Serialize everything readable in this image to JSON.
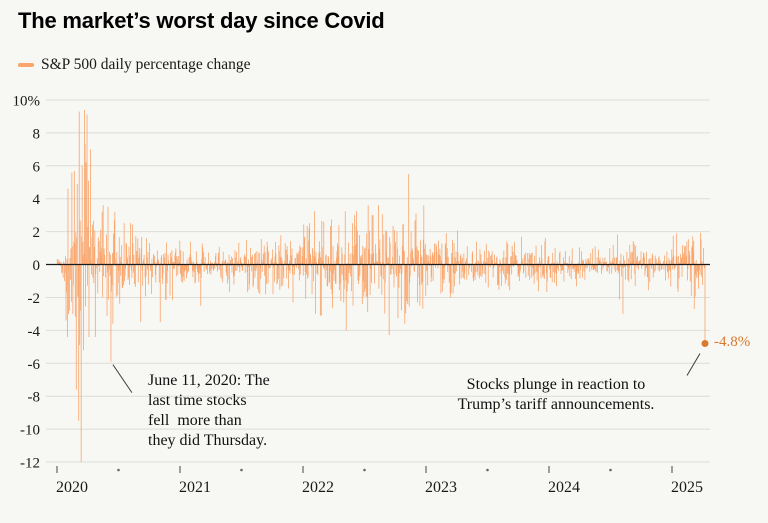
{
  "header": {
    "title": "The market’s worst day since Covid"
  },
  "legend": {
    "label": "S&P 500 daily percentage change"
  },
  "annotations": {
    "june2020": {
      "lines": [
        "June 11, 2020: The",
        "last time stocks",
        "fell  more than",
        "they did Thursday."
      ]
    },
    "tariff": {
      "lines": [
        "Stocks plunge in reaction to",
        "Trump’s tariff announcements."
      ]
    },
    "last_value_label": "-4.8%"
  },
  "chart_data": {
    "type": "bar",
    "title": "The market’s worst day since Covid",
    "series_name": "S&P 500 daily percentage change",
    "x_range": [
      2020.0,
      2025.27
    ],
    "ylim": [
      -12,
      10
    ],
    "y_ticks": [
      10,
      8,
      6,
      4,
      2,
      0,
      -2,
      -4,
      -6,
      -8,
      -10,
      -12
    ],
    "y_tick_labels": [
      "10%",
      "8",
      "6",
      "4",
      "2",
      "0",
      "-2",
      "-4",
      "-6",
      "-8",
      "-10",
      "-12"
    ],
    "x_ticks": [
      2020,
      2021,
      2022,
      2023,
      2024,
      2025
    ],
    "points_per_year": 252,
    "seed": 20250404,
    "bar_color": "#f9a56b",
    "highlight_color": "#d9792c",
    "grid_color": "#dcdcd8",
    "zero_line_color": "#1a1a1a",
    "axis_text_color": "#1a1a1a",
    "volatility_envelope": [
      {
        "from": 2020.0,
        "to": 2020.07,
        "sigma": 0.45
      },
      {
        "from": 2020.07,
        "to": 2020.12,
        "sigma": 1.6
      },
      {
        "from": 2020.12,
        "to": 2020.3,
        "sigma": 3.8
      },
      {
        "from": 2020.3,
        "to": 2020.5,
        "sigma": 1.5
      },
      {
        "from": 2020.5,
        "to": 2020.75,
        "sigma": 1.05
      },
      {
        "from": 2020.75,
        "to": 2021.0,
        "sigma": 0.9
      },
      {
        "from": 2021.0,
        "to": 2021.5,
        "sigma": 0.7
      },
      {
        "from": 2021.5,
        "to": 2022.0,
        "sigma": 0.75
      },
      {
        "from": 2022.0,
        "to": 2022.5,
        "sigma": 1.35
      },
      {
        "from": 2022.5,
        "to": 2023.0,
        "sigma": 1.5
      },
      {
        "from": 2023.0,
        "to": 2023.3,
        "sigma": 1.0
      },
      {
        "from": 2023.3,
        "to": 2024.0,
        "sigma": 0.7
      },
      {
        "from": 2024.0,
        "to": 2024.55,
        "sigma": 0.55
      },
      {
        "from": 2024.55,
        "to": 2024.7,
        "sigma": 1.0
      },
      {
        "from": 2024.7,
        "to": 2025.0,
        "sigma": 0.65
      },
      {
        "from": 2025.0,
        "to": 2025.3,
        "sigma": 0.95
      }
    ],
    "notable_points": [
      {
        "t": 2020.075,
        "value": -3.4
      },
      {
        "t": 2020.085,
        "value": -4.4
      },
      {
        "t": 2020.09,
        "value": 4.6
      },
      {
        "t": 2020.1,
        "value": -2.8
      },
      {
        "t": 2020.155,
        "value": -7.6
      },
      {
        "t": 2020.165,
        "value": 4.9
      },
      {
        "t": 2020.175,
        "value": -9.5
      },
      {
        "t": 2020.18,
        "value": 9.3
      },
      {
        "t": 2020.195,
        "value": -12.0
      },
      {
        "t": 2020.205,
        "value": 6.0
      },
      {
        "t": 2020.215,
        "value": -5.2
      },
      {
        "t": 2020.225,
        "value": 9.4
      },
      {
        "t": 2020.235,
        "value": 6.2
      },
      {
        "t": 2020.26,
        "value": -4.4
      },
      {
        "t": 2020.27,
        "value": 7.0
      },
      {
        "t": 2020.31,
        "value": -4.4
      },
      {
        "t": 2020.44,
        "value": -5.9,
        "pointer": "june"
      },
      {
        "t": 2020.47,
        "value": 3.2
      },
      {
        "t": 2020.68,
        "value": -3.5
      },
      {
        "t": 2020.84,
        "value": -3.5
      },
      {
        "t": 2021.17,
        "value": -2.5
      },
      {
        "t": 2021.92,
        "value": -2.3
      },
      {
        "t": 2022.1,
        "value": -3.0
      },
      {
        "t": 2022.17,
        "value": 2.6
      },
      {
        "t": 2022.35,
        "value": -4.0
      },
      {
        "t": 2022.42,
        "value": 3.0
      },
      {
        "t": 2022.7,
        "value": -4.3
      },
      {
        "t": 2022.86,
        "value": 5.5
      },
      {
        "t": 2022.92,
        "value": 3.1
      },
      {
        "t": 2022.95,
        "value": -2.5
      },
      {
        "t": 2023.2,
        "value": -2.0
      },
      {
        "t": 2024.6,
        "value": -3.0
      },
      {
        "t": 2025.18,
        "value": -2.7
      },
      {
        "t": 2025.27,
        "value": -4.8,
        "marker": true,
        "pointer": "tariff",
        "label": "-4.8%"
      }
    ]
  }
}
